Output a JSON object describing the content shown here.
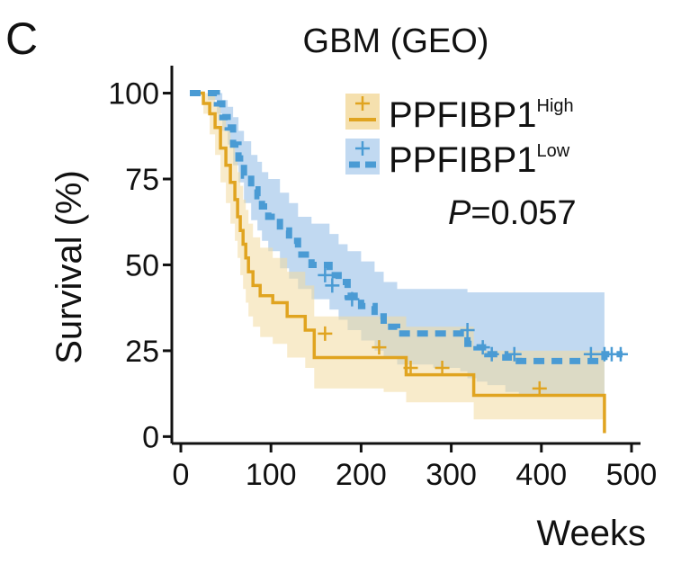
{
  "panel_label": "C",
  "chart_data": {
    "type": "line",
    "subtype": "kaplan-meier",
    "title": "GBM (GEO)",
    "xlabel": "Weeks",
    "ylabel": "Survival (%)",
    "xlim": [
      -10,
      510
    ],
    "ylim": [
      -2,
      108
    ],
    "x_ticks": [
      0,
      100,
      200,
      300,
      400,
      500
    ],
    "y_ticks": [
      0,
      25,
      50,
      75,
      100
    ],
    "x_tick_labels": [
      "0",
      "100",
      "200",
      "300",
      "400",
      "500"
    ],
    "y_tick_labels": [
      "0",
      "25",
      "50",
      "75",
      "100"
    ],
    "grid": false,
    "legend_position": "top-right",
    "annotation": {
      "p_label": "P",
      "p_value": "=0.057"
    },
    "series": [
      {
        "key": "high",
        "name": "PPFIBP1",
        "superscript": "High",
        "color": "#E0A420",
        "fill": "#F3DBA0",
        "line_style": "solid",
        "steps": [
          [
            10,
            100
          ],
          [
            25,
            97
          ],
          [
            32,
            94
          ],
          [
            38,
            90
          ],
          [
            44,
            84
          ],
          [
            50,
            79
          ],
          [
            55,
            74
          ],
          [
            60,
            69
          ],
          [
            63,
            64
          ],
          [
            66,
            60
          ],
          [
            69,
            56
          ],
          [
            72,
            52
          ],
          [
            75,
            48
          ],
          [
            80,
            44
          ],
          [
            88,
            41
          ],
          [
            102,
            39
          ],
          [
            118,
            35
          ],
          [
            138,
            31
          ],
          [
            148,
            23
          ],
          [
            225,
            23
          ],
          [
            250,
            18
          ],
          [
            325,
            18
          ],
          [
            325,
            12
          ],
          [
            470,
            12
          ],
          [
            470,
            1
          ]
        ],
        "lower": [
          [
            10,
            100
          ],
          [
            25,
            94
          ],
          [
            32,
            88
          ],
          [
            38,
            82
          ],
          [
            44,
            74
          ],
          [
            50,
            68
          ],
          [
            55,
            62
          ],
          [
            60,
            57
          ],
          [
            63,
            52
          ],
          [
            66,
            47
          ],
          [
            69,
            43
          ],
          [
            72,
            39
          ],
          [
            75,
            35
          ],
          [
            80,
            32
          ],
          [
            88,
            29
          ],
          [
            102,
            27
          ],
          [
            118,
            23
          ],
          [
            138,
            20
          ],
          [
            148,
            14
          ],
          [
            225,
            13
          ],
          [
            250,
            10
          ],
          [
            325,
            9
          ],
          [
            325,
            5
          ],
          [
            470,
            5
          ]
        ],
        "upper": [
          [
            10,
            100
          ],
          [
            25,
            100
          ],
          [
            32,
            100
          ],
          [
            38,
            97
          ],
          [
            44,
            93
          ],
          [
            50,
            89
          ],
          [
            55,
            85
          ],
          [
            60,
            81
          ],
          [
            63,
            77
          ],
          [
            66,
            73
          ],
          [
            69,
            69
          ],
          [
            72,
            66
          ],
          [
            75,
            62
          ],
          [
            80,
            58
          ],
          [
            88,
            55
          ],
          [
            102,
            52
          ],
          [
            118,
            48
          ],
          [
            138,
            44
          ],
          [
            148,
            35
          ],
          [
            225,
            35
          ],
          [
            250,
            32
          ],
          [
            325,
            31
          ],
          [
            325,
            25
          ],
          [
            470,
            25
          ]
        ],
        "censor": [
          [
            160,
            30
          ],
          [
            220,
            26
          ],
          [
            255,
            20
          ],
          [
            290,
            20
          ],
          [
            398,
            14
          ]
        ]
      },
      {
        "key": "low",
        "name": "PPFIBP1",
        "superscript": "Low",
        "color": "#4A9BD4",
        "fill": "#B6D2EE",
        "line_style": "dashed",
        "steps": [
          [
            10,
            100
          ],
          [
            30,
            100
          ],
          [
            40,
            97
          ],
          [
            46,
            93
          ],
          [
            52,
            90
          ],
          [
            58,
            85
          ],
          [
            64,
            81
          ],
          [
            70,
            76
          ],
          [
            78,
            72
          ],
          [
            85,
            70
          ],
          [
            90,
            67
          ],
          [
            97,
            64
          ],
          [
            110,
            60
          ],
          [
            120,
            57
          ],
          [
            130,
            53
          ],
          [
            145,
            50
          ],
          [
            165,
            47
          ],
          [
            175,
            45
          ],
          [
            185,
            41
          ],
          [
            200,
            38
          ],
          [
            215,
            35
          ],
          [
            225,
            32
          ],
          [
            240,
            30
          ],
          [
            260,
            30
          ],
          [
            280,
            30
          ],
          [
            310,
            30
          ],
          [
            318,
            27
          ],
          [
            328,
            26
          ],
          [
            340,
            24
          ],
          [
            360,
            23
          ],
          [
            375,
            22
          ],
          [
            470,
            22
          ],
          [
            470,
            24
          ],
          [
            490,
            24
          ]
        ],
        "lower": [
          [
            10,
            100
          ],
          [
            30,
            98
          ],
          [
            40,
            94
          ],
          [
            46,
            89
          ],
          [
            52,
            85
          ],
          [
            58,
            79
          ],
          [
            64,
            74
          ],
          [
            70,
            68
          ],
          [
            78,
            63
          ],
          [
            85,
            60
          ],
          [
            90,
            57
          ],
          [
            97,
            54
          ],
          [
            110,
            49
          ],
          [
            120,
            46
          ],
          [
            130,
            43
          ],
          [
            145,
            40
          ],
          [
            165,
            37
          ],
          [
            175,
            34
          ],
          [
            185,
            31
          ],
          [
            200,
            28
          ],
          [
            215,
            25
          ],
          [
            225,
            23
          ],
          [
            240,
            21
          ],
          [
            260,
            21
          ],
          [
            280,
            20
          ],
          [
            310,
            19
          ],
          [
            318,
            17
          ],
          [
            328,
            16
          ],
          [
            340,
            15
          ],
          [
            360,
            13
          ],
          [
            375,
            12
          ],
          [
            470,
            11
          ]
        ],
        "upper": [
          [
            10,
            100
          ],
          [
            30,
            100
          ],
          [
            40,
            100
          ],
          [
            46,
            98
          ],
          [
            52,
            96
          ],
          [
            58,
            93
          ],
          [
            64,
            89
          ],
          [
            70,
            86
          ],
          [
            78,
            82
          ],
          [
            85,
            80
          ],
          [
            90,
            77
          ],
          [
            97,
            75
          ],
          [
            110,
            71
          ],
          [
            120,
            68
          ],
          [
            130,
            64
          ],
          [
            145,
            62
          ],
          [
            165,
            59
          ],
          [
            175,
            56
          ],
          [
            185,
            54
          ],
          [
            200,
            51
          ],
          [
            215,
            48
          ],
          [
            225,
            45
          ],
          [
            240,
            43
          ],
          [
            260,
            43
          ],
          [
            280,
            43
          ],
          [
            310,
            43
          ],
          [
            318,
            42
          ],
          [
            328,
            42
          ],
          [
            340,
            42
          ],
          [
            360,
            42
          ],
          [
            375,
            42
          ],
          [
            470,
            42
          ]
        ],
        "censor": [
          [
            160,
            47
          ],
          [
            168,
            44
          ],
          [
            190,
            40
          ],
          [
            318,
            31
          ],
          [
            335,
            26
          ],
          [
            345,
            24
          ],
          [
            370,
            24
          ],
          [
            455,
            24
          ],
          [
            470,
            24
          ],
          [
            478,
            24
          ],
          [
            488,
            24
          ]
        ]
      }
    ]
  }
}
